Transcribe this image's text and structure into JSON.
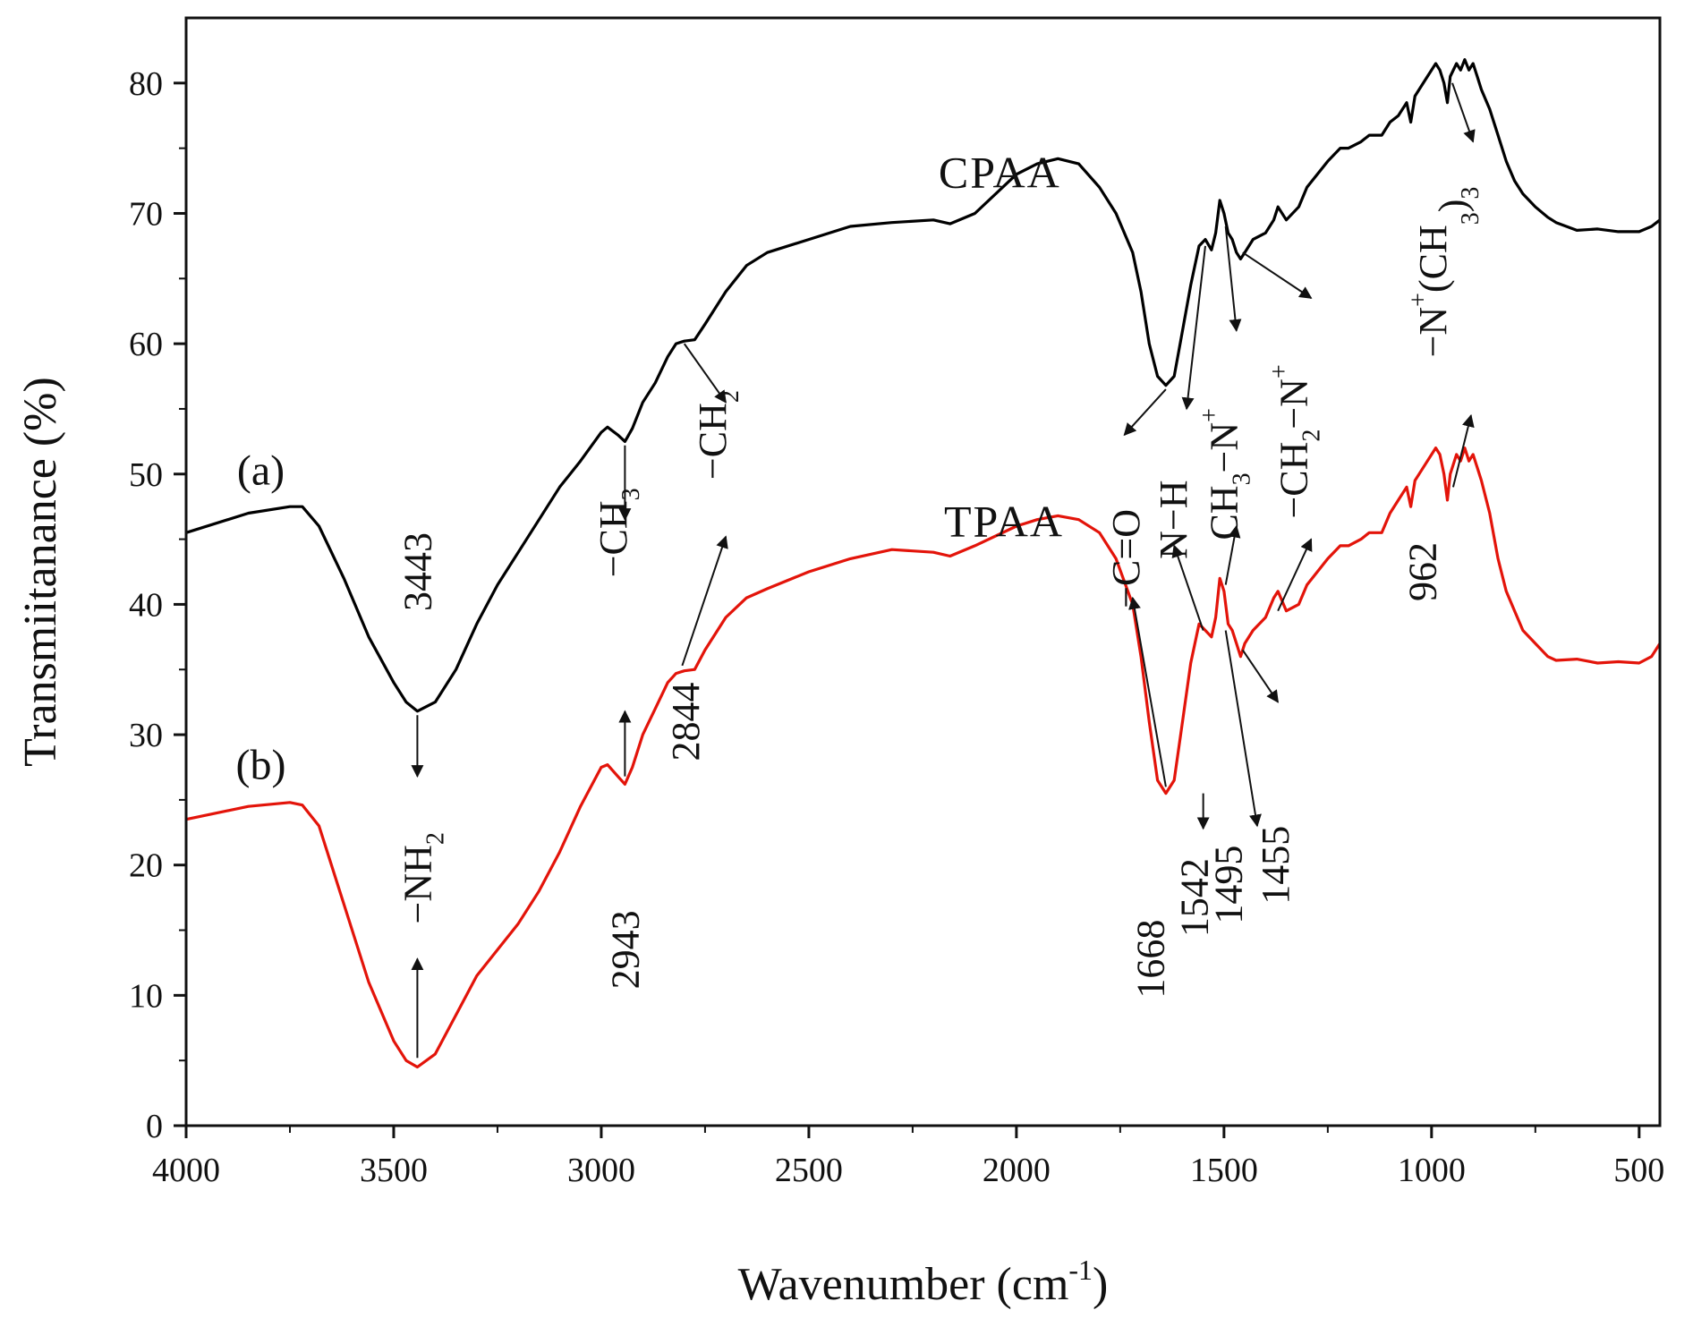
{
  "chart_data": {
    "type": "line",
    "xlabel_main": "Wavenumber (cm",
    "xlabel_sup": "-1",
    "xlabel_close": ")",
    "ylabel": "Transmiitanance (%)",
    "xlim": [
      4000,
      450
    ],
    "ylim": [
      0,
      85
    ],
    "x_ticks": [
      4000,
      3500,
      3000,
      2500,
      2000,
      1500,
      1000,
      500
    ],
    "x_tick_labels": [
      "4000",
      "3500",
      "3000",
      "2500",
      "2000",
      "1500",
      "1000",
      "500"
    ],
    "y_ticks": [
      0,
      10,
      20,
      30,
      40,
      50,
      60,
      70,
      80
    ],
    "y_tick_labels": [
      "0",
      "10",
      "20",
      "30",
      "40",
      "50",
      "60",
      "70",
      "80"
    ],
    "grid": false,
    "series": [
      {
        "name": "CPAA",
        "tag": "(a)",
        "color": "#000000",
        "x": [
          4000,
          3850,
          3750,
          3720,
          3680,
          3620,
          3560,
          3500,
          3470,
          3443,
          3400,
          3350,
          3300,
          3250,
          3200,
          3150,
          3100,
          3050,
          3000,
          2985,
          2960,
          2943,
          2925,
          2900,
          2870,
          2840,
          2820,
          2800,
          2775,
          2750,
          2700,
          2650,
          2600,
          2500,
          2400,
          2300,
          2200,
          2160,
          2100,
          2000,
          1950,
          1900,
          1850,
          1800,
          1760,
          1720,
          1700,
          1680,
          1660,
          1640,
          1620,
          1600,
          1580,
          1560,
          1545,
          1530,
          1520,
          1510,
          1500,
          1490,
          1480,
          1470,
          1460,
          1450,
          1430,
          1400,
          1380,
          1370,
          1350,
          1320,
          1300,
          1250,
          1220,
          1200,
          1170,
          1150,
          1120,
          1100,
          1080,
          1060,
          1050,
          1040,
          1030,
          1010,
          990,
          980,
          970,
          962,
          955,
          940,
          930,
          920,
          910,
          900,
          890,
          880,
          860,
          840,
          820,
          800,
          780,
          750,
          720,
          700,
          650,
          600,
          550,
          500,
          470,
          450
        ],
        "y": [
          45.5,
          47.0,
          47.5,
          47.5,
          46.0,
          42.0,
          37.5,
          34.0,
          32.5,
          31.8,
          32.5,
          35.0,
          38.5,
          41.5,
          44.0,
          46.5,
          49.0,
          51.0,
          53.2,
          53.6,
          53.0,
          52.5,
          53.5,
          55.5,
          57.0,
          59.0,
          60.0,
          60.2,
          60.3,
          61.5,
          64.0,
          66.0,
          67.0,
          68.0,
          69.0,
          69.3,
          69.5,
          69.2,
          70.0,
          73.0,
          73.8,
          74.2,
          73.8,
          72.0,
          70.0,
          67.0,
          64.0,
          60.0,
          57.5,
          56.8,
          57.5,
          61.0,
          64.5,
          67.5,
          68.0,
          67.2,
          68.5,
          71.0,
          70.0,
          68.5,
          68.0,
          67.0,
          66.5,
          67.0,
          68.0,
          68.5,
          69.5,
          70.5,
          69.5,
          70.5,
          72.0,
          74.0,
          75.0,
          75.0,
          75.5,
          76.0,
          76.0,
          77.0,
          77.5,
          78.5,
          77.0,
          79.0,
          79.5,
          80.5,
          81.5,
          81.0,
          80.0,
          78.5,
          80.5,
          81.5,
          81.0,
          81.8,
          81.0,
          81.5,
          80.5,
          79.5,
          78.0,
          76.0,
          74.0,
          72.5,
          71.5,
          70.5,
          69.7,
          69.3,
          68.7,
          68.8,
          68.6,
          68.6,
          69.0,
          69.5
        ]
      },
      {
        "name": "TPAA",
        "tag": "(b)",
        "color": "#e3140a",
        "x": [
          4000,
          3850,
          3750,
          3720,
          3680,
          3620,
          3560,
          3500,
          3470,
          3443,
          3400,
          3350,
          3300,
          3250,
          3200,
          3150,
          3100,
          3050,
          3000,
          2985,
          2960,
          2943,
          2925,
          2900,
          2870,
          2840,
          2820,
          2800,
          2775,
          2750,
          2700,
          2650,
          2600,
          2500,
          2400,
          2300,
          2200,
          2160,
          2100,
          2000,
          1950,
          1900,
          1850,
          1800,
          1760,
          1720,
          1700,
          1680,
          1660,
          1640,
          1620,
          1600,
          1580,
          1560,
          1545,
          1530,
          1520,
          1510,
          1500,
          1490,
          1480,
          1470,
          1460,
          1450,
          1430,
          1400,
          1380,
          1370,
          1350,
          1320,
          1300,
          1250,
          1220,
          1200,
          1170,
          1150,
          1120,
          1100,
          1080,
          1060,
          1050,
          1040,
          1030,
          1010,
          990,
          980,
          970,
          962,
          955,
          940,
          930,
          920,
          910,
          900,
          890,
          880,
          860,
          840,
          820,
          800,
          780,
          750,
          720,
          700,
          650,
          600,
          550,
          500,
          470,
          450
        ],
        "y": [
          23.5,
          24.5,
          24.8,
          24.6,
          23.0,
          17.0,
          11.0,
          6.5,
          5.0,
          4.5,
          5.5,
          8.5,
          11.5,
          13.5,
          15.5,
          18.0,
          21.0,
          24.5,
          27.5,
          27.7,
          26.8,
          26.2,
          27.5,
          30.0,
          32.0,
          34.0,
          34.7,
          34.9,
          35.0,
          36.5,
          39.0,
          40.5,
          41.2,
          42.5,
          43.5,
          44.2,
          44.0,
          43.7,
          44.5,
          46.0,
          46.5,
          46.8,
          46.5,
          45.5,
          43.5,
          40.0,
          36.0,
          31.0,
          26.5,
          25.5,
          26.5,
          31.0,
          35.5,
          38.5,
          38.0,
          37.5,
          39.0,
          42.0,
          41.0,
          38.5,
          38.0,
          37.0,
          36.0,
          37.0,
          38.0,
          39.0,
          40.5,
          41.0,
          39.5,
          40.0,
          41.5,
          43.5,
          44.5,
          44.5,
          45.0,
          45.5,
          45.5,
          47.0,
          48.0,
          49.0,
          47.5,
          49.5,
          50.0,
          51.0,
          52.0,
          51.5,
          50.0,
          48.0,
          50.0,
          51.5,
          51.0,
          52.0,
          51.0,
          51.5,
          50.5,
          49.5,
          47.0,
          43.5,
          41.0,
          39.5,
          38.0,
          37.0,
          36.0,
          35.7,
          35.8,
          35.5,
          35.6,
          35.5,
          36.0,
          37.0
        ]
      }
    ],
    "series_labels": [
      {
        "text": "CPAA",
        "x": 2040,
        "y": 72.0
      },
      {
        "text": "TPAA",
        "x": 2030,
        "y": 45.2
      }
    ],
    "tag_labels": [
      {
        "text": "(a)",
        "x": 3820,
        "y": 49.2
      },
      {
        "text": "(b)",
        "x": 3820,
        "y": 26.6
      }
    ],
    "annotations": [
      {
        "kind": "num",
        "text": "3443",
        "x": 3410,
        "y": 42.5
      },
      {
        "kind": "num",
        "text": "2943",
        "x": 2910,
        "y": 13.5
      },
      {
        "kind": "num",
        "text": "2844",
        "x": 2765,
        "y": 31.0
      },
      {
        "kind": "num",
        "text": "1668",
        "x": 1645,
        "y": 12.8
      },
      {
        "kind": "num",
        "text": "1542",
        "x": 1540,
        "y": 17.5
      },
      {
        "kind": "num",
        "text": "1495",
        "x": 1458,
        "y": 18.5
      },
      {
        "kind": "num",
        "text": "1455",
        "x": 1345,
        "y": 20.0
      },
      {
        "kind": "num",
        "text": "962",
        "x": 990,
        "y": 42.5
      },
      {
        "kind": "group",
        "pre": "−NH",
        "sub": "2",
        "x": 3410,
        "y": 19.0
      },
      {
        "kind": "group",
        "pre": "−CH",
        "sub": "3",
        "x": 2940,
        "y": 45.5
      },
      {
        "kind": "group",
        "pre": "−CH",
        "sub": "2",
        "x": 2700,
        "y": 53.0
      },
      {
        "kind": "group",
        "pre": "−C=O",
        "x": 1705,
        "y": 43.5
      },
      {
        "kind": "group",
        "pre": "N−H",
        "x": 1590,
        "y": 46.5
      },
      {
        "kind": "group",
        "pre": "CH",
        "sub": "3",
        "mid": "−N",
        "sup": "+",
        "x": 1468,
        "y": 50.0
      },
      {
        "kind": "group",
        "pre": "−CH",
        "sub": "2",
        "mid": "−N",
        "sup": "+",
        "x": 1300,
        "y": 52.5
      },
      {
        "kind": "group",
        "pre": "−N",
        "sup": "+",
        "mid": "(CH",
        "sub2": "3",
        "tail": ")",
        "sub3": "3",
        "x": 965,
        "y": 65.5
      }
    ],
    "arrows": [
      {
        "from": [
          3443,
          31.5
        ],
        "to": [
          3443,
          26.8
        ]
      },
      {
        "from": [
          3443,
          5.2
        ],
        "to": [
          3443,
          12.8
        ]
      },
      {
        "from": [
          2943,
          52.2
        ],
        "to": [
          2943,
          46.5
        ]
      },
      {
        "from": [
          2943,
          26.8
        ],
        "to": [
          2943,
          31.8
        ]
      },
      {
        "from": [
          2800,
          60.0
        ],
        "to": [
          2700,
          55.5
        ]
      },
      {
        "from": [
          2805,
          35.3
        ],
        "to": [
          2700,
          45.2
        ]
      },
      {
        "from": [
          1640,
          56.5
        ],
        "to": [
          1740,
          53.0
        ]
      },
      {
        "from": [
          1640,
          26.0
        ],
        "to": [
          1720,
          40.5
        ]
      },
      {
        "from": [
          1545,
          67.5
        ],
        "to": [
          1590,
          55.0
        ]
      },
      {
        "from": [
          1550,
          25.5
        ],
        "to": [
          1550,
          22.8
        ]
      },
      {
        "from": [
          1550,
          38.0
        ],
        "to": [
          1620,
          44.5
        ]
      },
      {
        "from": [
          1496,
          69.0
        ],
        "to": [
          1470,
          61.0
        ]
      },
      {
        "from": [
          1496,
          41.5
        ],
        "to": [
          1470,
          46.0
        ]
      },
      {
        "from": [
          1496,
          38.0
        ],
        "to": [
          1420,
          23.0
        ]
      },
      {
        "from": [
          1455,
          67.0
        ],
        "to": [
          1290,
          63.5
        ]
      },
      {
        "from": [
          1455,
          36.5
        ],
        "to": [
          1370,
          32.5
        ]
      },
      {
        "from": [
          1370,
          39.5
        ],
        "to": [
          1290,
          45.0
        ]
      },
      {
        "from": [
          950,
          80.0
        ],
        "to": [
          900,
          75.5
        ]
      },
      {
        "from": [
          948,
          49.0
        ],
        "to": [
          905,
          54.5
        ]
      }
    ]
  }
}
